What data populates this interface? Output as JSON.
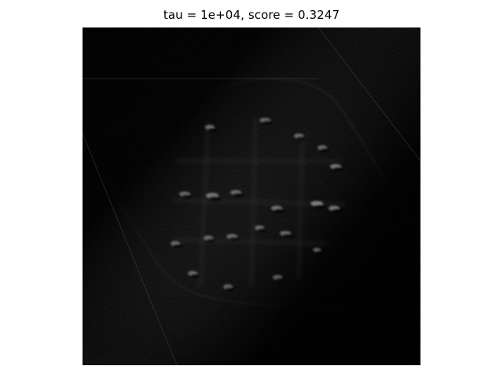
{
  "figure": {
    "title": "tau = 1e+04, score = 0.3247"
  },
  "image": {
    "description_type": "grayscale reconstruction image",
    "colormap": "gray"
  }
}
